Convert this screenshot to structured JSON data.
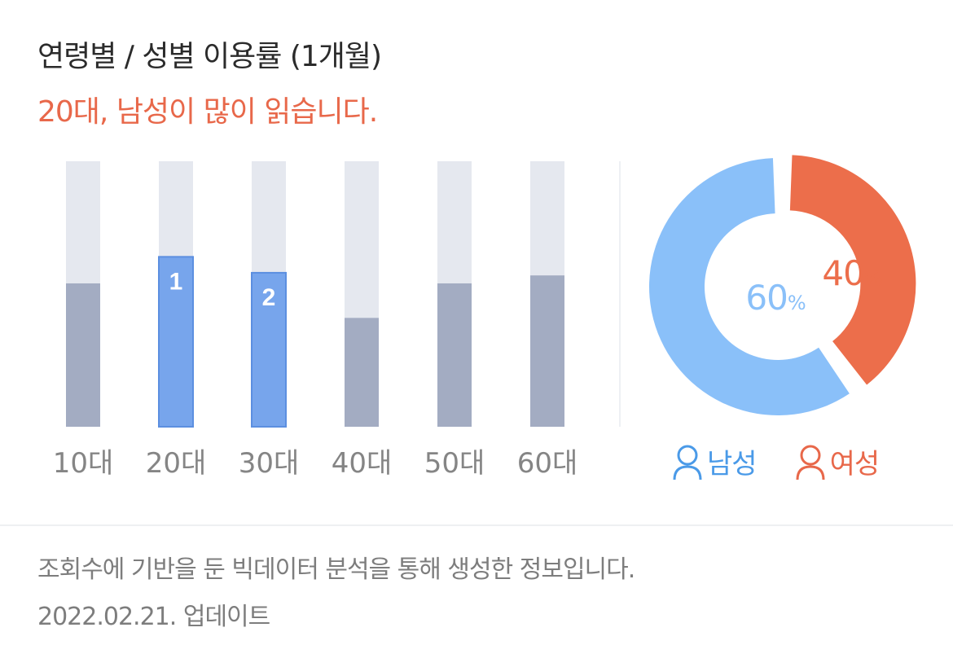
{
  "header": {
    "title": "연령별 / 성별 이용률 (1개월)",
    "subtitle": "20대, 남성이 많이 읽습니다."
  },
  "chart_data": [
    {
      "type": "bar",
      "categories": [
        "10대",
        "20대",
        "30대",
        "40대",
        "50대",
        "60대"
      ],
      "values": [
        54,
        64,
        58,
        41,
        54,
        57
      ],
      "ylim": [
        0,
        100
      ],
      "rank_labels": [
        "",
        "1",
        "2",
        "",
        "",
        ""
      ],
      "highlighted": [
        false,
        true,
        true,
        false,
        false,
        false
      ],
      "colors": {
        "track": "#e5e8ef",
        "bar": "#a3acc2",
        "highlight": "#77a5ec",
        "highlight_border": "#5c8fe0",
        "tick": "#858585"
      }
    },
    {
      "type": "pie",
      "categories": [
        "남성",
        "여성"
      ],
      "values": [
        60,
        40
      ],
      "labels": [
        "60%",
        "40%"
      ],
      "colors": [
        "#8ac0f9",
        "#ec6e4b"
      ]
    }
  ],
  "legend": {
    "male": {
      "label": "남성",
      "color": "#4a9ae8",
      "icon": "person-icon"
    },
    "female": {
      "label": "여성",
      "color": "#e8684a",
      "icon": "person-icon"
    }
  },
  "footer": {
    "note": "조회수에 기반을 둔 빅데이터 분석을 통해 생성한 정보입니다.",
    "date": "2022.02.21. 업데이트"
  }
}
